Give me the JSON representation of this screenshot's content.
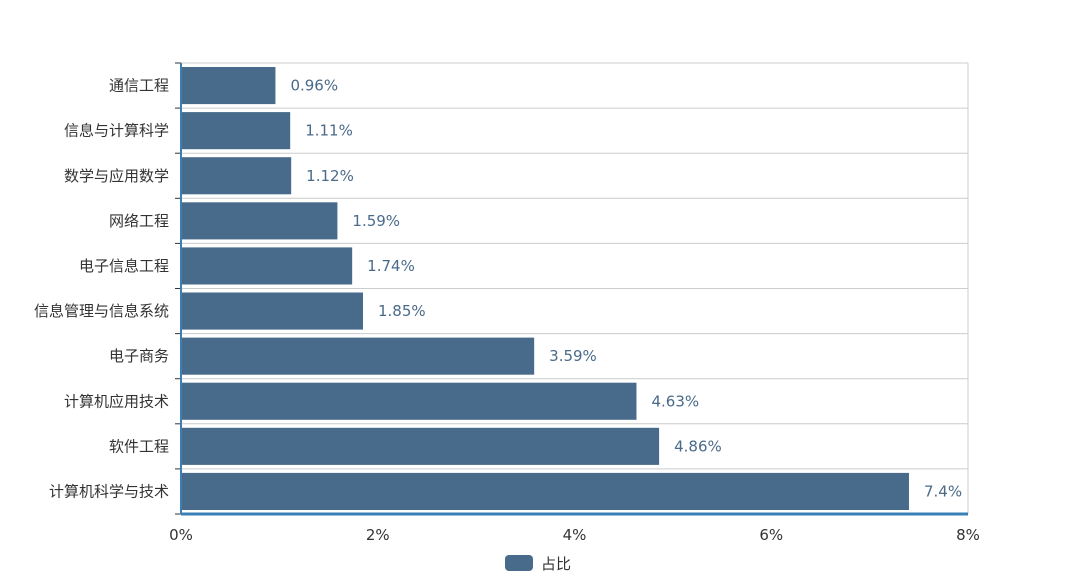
{
  "chart_data": {
    "type": "bar",
    "orientation": "horizontal",
    "categories": [
      "通信工程",
      "信息与计算科学",
      "数学与应用数学",
      "网络工程",
      "电子信息工程",
      "信息管理与信息系统",
      "电子商务",
      "计算机应用技术",
      "软件工程",
      "计算机科学与技术"
    ],
    "values": [
      0.96,
      1.11,
      1.12,
      1.59,
      1.74,
      1.85,
      3.59,
      4.63,
      4.86,
      7.4
    ],
    "value_labels": [
      "0.96%",
      "1.11%",
      "1.12%",
      "1.59%",
      "1.74%",
      "1.85%",
      "3.59%",
      "4.63%",
      "4.86%",
      "7.4%"
    ],
    "xlim": [
      0,
      8
    ],
    "xticks": [
      "0%",
      "2%",
      "4%",
      "6%",
      "8%"
    ],
    "series_name": "占比",
    "legend": "bottom-center",
    "grid": true,
    "bar_color": "#486b8b",
    "axis_color": "#3a7fb5"
  }
}
